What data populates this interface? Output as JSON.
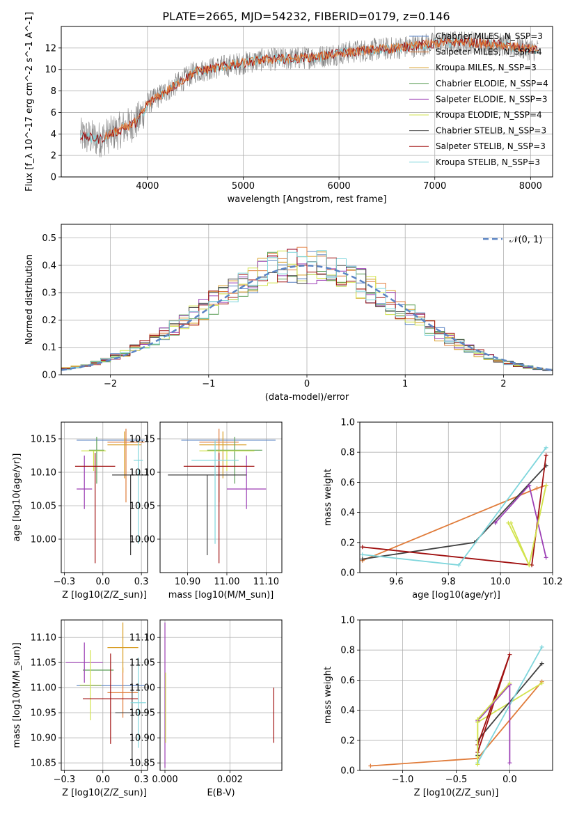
{
  "figure_title": "PLATE=2665, MJD=54232, FIBERID=0179, z=0.146",
  "series_styles": [
    {
      "name": "Chabrier MILES, N_SSP=3",
      "color": "#5b84c4"
    },
    {
      "name": "Salpeter MILES, N_SSP=4",
      "color": "#e07b39"
    },
    {
      "name": "Kroupa MILES, N_SSP=3",
      "color": "#d89c22"
    },
    {
      "name": "Chabrier ELODIE, N_SSP=4",
      "color": "#5a9e56"
    },
    {
      "name": "Salpeter ELODIE, N_SSP=3",
      "color": "#9c3fb5"
    },
    {
      "name": "Kroupa ELODIE, N_SSP=4",
      "color": "#d2e34e"
    },
    {
      "name": "Chabrier STELIB, N_SSP=3",
      "color": "#404040"
    },
    {
      "name": "Salpeter STELIB, N_SSP=3",
      "color": "#a01010"
    },
    {
      "name": "Kroupa STELIB, N_SSP=3",
      "color": "#7fd6dc"
    }
  ],
  "chart_data": [
    {
      "type": "line",
      "id": "spectrum",
      "xlabel": "wavelength [Angstrom, rest frame]",
      "ylabel": "Flux [f_λ 10^-17 erg cm^-2 s^-1 A^-1]",
      "xlim": [
        3100,
        8230
      ],
      "ylim": [
        0,
        14
      ],
      "xticks": [
        4000,
        5000,
        6000,
        7000,
        8000
      ],
      "yticks": [
        0,
        2,
        4,
        6,
        8,
        10,
        12
      ],
      "legend": {
        "position": "top-right",
        "entries": [
          "Chabrier MILES, N_SSP=3",
          "Salpeter MILES, N_SSP=4",
          "Kroupa MILES, N_SSP=3",
          "Chabrier ELODIE, N_SSP=4",
          "Salpeter ELODIE, N_SSP=3",
          "Kroupa ELODIE, N_SSP=4",
          "Chabrier STELIB, N_SSP=3",
          "Salpeter STELIB, N_SSP=3",
          "Kroupa STELIB, N_SSP=3"
        ]
      },
      "data_color": "#808080",
      "continuum_x": [
        3300,
        3500,
        3700,
        3900,
        4000,
        4300,
        4500,
        4800,
        5000,
        5200,
        5500,
        5800,
        6000,
        6300,
        6600,
        7000,
        7300,
        7500,
        7700,
        7900,
        8080
      ],
      "continuum_y": [
        3.8,
        3.5,
        4.3,
        5.2,
        6.8,
        8.6,
        9.8,
        10.3,
        10.6,
        10.9,
        11.0,
        11.2,
        11.5,
        11.8,
        12.0,
        12.4,
        12.6,
        12.4,
        12.3,
        12.0,
        11.8
      ],
      "model_colors": [
        "#7fd6dc",
        "#a01010",
        "#e07b39"
      ],
      "model_start": [
        3300,
        3300,
        3550
      ]
    },
    {
      "type": "histogram",
      "id": "residuals",
      "xlabel": "(data-model)/error",
      "ylabel": "Normed distribution",
      "xlim": [
        -2.5,
        2.5
      ],
      "ylim": [
        0,
        0.55
      ],
      "xticks": [
        -2,
        -1,
        0,
        1,
        2
      ],
      "yticks": [
        0.0,
        0.1,
        0.2,
        0.3,
        0.4,
        0.5
      ],
      "bin_width": 0.1,
      "legend": {
        "position": "top-right",
        "entries": [
          "N(0,1)"
        ]
      },
      "reference_curve": {
        "name": "N(0,1)",
        "color": "#5b84c4",
        "style": "dashed"
      }
    },
    {
      "type": "scatter",
      "id": "age_vs_Z",
      "xlabel": "Z [log10(Z/Z_sun)]",
      "ylabel": "age [log10(age/yr)]",
      "xlim": [
        -0.27,
        0.29
      ],
      "ylim": [
        9.95,
        10.175
      ],
      "xticks": [
        -0.25,
        0.0,
        0.25
      ],
      "yticks": [
        10.0,
        10.05,
        10.1,
        10.15
      ],
      "points": [
        {
          "x": 0.05,
          "y": 10.148,
          "xerr": 0.22,
          "yerr_lo": 0.0,
          "yerr_hi": 0.0
        },
        {
          "x": 0.15,
          "y": 10.145,
          "xerr": 0.12,
          "yerr_lo": 0.09,
          "yerr_hi": 0.02
        },
        {
          "x": 0.14,
          "y": 10.141,
          "xerr": 0.11,
          "yerr_lo": 0.05,
          "yerr_hi": 0.02
        },
        {
          "x": -0.04,
          "y": 10.133,
          "xerr": 0.05,
          "yerr_lo": 0.05,
          "yerr_hi": 0.02
        },
        {
          "x": -0.12,
          "y": 10.075,
          "xerr": 0.05,
          "yerr_lo": 0.03,
          "yerr_hi": 0.05
        },
        {
          "x": -0.06,
          "y": 10.132,
          "xerr": 0.08,
          "yerr_lo": 0.03,
          "yerr_hi": 0.0
        },
        {
          "x": 0.18,
          "y": 10.096,
          "xerr": 0.12,
          "yerr_lo": 0.12,
          "yerr_hi": 0.0
        },
        {
          "x": -0.05,
          "y": 10.109,
          "xerr": 0.13,
          "yerr_lo": 0.145,
          "yerr_hi": 0.02
        },
        {
          "x": 0.23,
          "y": 10.118,
          "xerr": 0.03,
          "yerr_lo": 0.125,
          "yerr_hi": 0.03
        }
      ]
    },
    {
      "type": "scatter",
      "id": "age_vs_mass",
      "xlabel": "mass [log10(M/M_sun)]",
      "ylabel": "",
      "xlim": [
        10.83,
        11.14
      ],
      "ylim": [
        9.95,
        10.175
      ],
      "xticks": [
        10.9,
        11.0,
        11.1
      ],
      "yticks": [
        10.0,
        10.05,
        10.1,
        10.15
      ],
      "points": [
        {
          "x": 11.004,
          "y": 10.148,
          "xerr": 0.12,
          "yerr_lo": 0.0,
          "yerr_hi": 0.0
        },
        {
          "x": 10.98,
          "y": 10.145,
          "xerr": 0.05,
          "yerr_lo": 0.09,
          "yerr_hi": 0.02
        },
        {
          "x": 10.99,
          "y": 10.141,
          "xerr": 0.06,
          "yerr_lo": 0.05,
          "yerr_hi": 0.02
        },
        {
          "x": 11.02,
          "y": 10.133,
          "xerr": 0.07,
          "yerr_lo": 0.05,
          "yerr_hi": 0.02
        },
        {
          "x": 11.05,
          "y": 10.075,
          "xerr": 0.05,
          "yerr_lo": 0.03,
          "yerr_hi": 0.05
        },
        {
          "x": 11.0,
          "y": 10.132,
          "xerr": 0.07,
          "yerr_lo": 0.03,
          "yerr_hi": 0.0
        },
        {
          "x": 10.95,
          "y": 10.096,
          "xerr": 0.1,
          "yerr_lo": 0.12,
          "yerr_hi": 0.0
        },
        {
          "x": 10.98,
          "y": 10.109,
          "xerr": 0.09,
          "yerr_lo": 0.145,
          "yerr_hi": 0.02
        },
        {
          "x": 10.97,
          "y": 10.118,
          "xerr": 0.06,
          "yerr_lo": 0.125,
          "yerr_hi": 0.03
        }
      ]
    },
    {
      "type": "line",
      "id": "weight_vs_age",
      "xlabel": "age [log10(age/yr)]",
      "ylabel": "mass weight",
      "xlim": [
        9.46,
        10.2
      ],
      "ylim": [
        0,
        1
      ],
      "xticks": [
        9.6,
        9.8,
        10.0,
        10.2
      ],
      "yticks": [
        0.0,
        0.2,
        0.4,
        0.6,
        0.8,
        1.0
      ],
      "series": [
        {
          "x": [
            9.47,
            10.14,
            10.175
          ],
          "y": [
            0.08,
            0.56,
            0.58
          ]
        },
        {
          "x": [
            10.03,
            10.11,
            10.175
          ],
          "y": [
            0.33,
            0.05,
            0.58
          ]
        },
        {
          "x": [
            9.47,
            9.9,
            10.175
          ],
          "y": [
            0.09,
            0.2,
            0.71
          ]
        },
        {
          "x": [
            9.47,
            10.12,
            10.175
          ],
          "y": [
            0.17,
            0.05,
            0.78
          ]
        },
        {
          "x": [
            9.47,
            9.84,
            10.175
          ],
          "y": [
            0.12,
            0.05,
            0.83
          ]
        },
        {
          "x": [
            9.98,
            10.11,
            10.175
          ],
          "y": [
            0.33,
            0.58,
            0.1
          ]
        },
        {
          "x": [
            10.04,
            10.11,
            10.175
          ],
          "y": [
            0.33,
            0.05,
            0.58
          ]
        }
      ]
    },
    {
      "type": "scatter",
      "id": "mass_vs_Z",
      "xlabel": "Z [log10(Z/Z_sun)]",
      "ylabel": "mass [log10(M/M_sun)]",
      "xlim": [
        -0.27,
        0.29
      ],
      "ylim": [
        10.835,
        11.135
      ],
      "xticks": [
        -0.25,
        0.0,
        0.25
      ],
      "yticks": [
        10.85,
        10.9,
        10.95,
        11.0,
        11.05,
        11.1
      ],
      "points": [
        {
          "x": 0.05,
          "y": 11.004,
          "xerr": 0.22,
          "yerr": 0.0
        },
        {
          "x": 0.13,
          "y": 10.99,
          "xerr": 0.1,
          "yerr": 0.05
        },
        {
          "x": 0.13,
          "y": 11.08,
          "xerr": 0.1,
          "yerr": 0.05
        },
        {
          "x": -0.03,
          "y": 11.035,
          "xerr": 0.1,
          "yerr": 0.0
        },
        {
          "x": -0.12,
          "y": 11.05,
          "xerr": 0.12,
          "yerr": 0.04
        },
        {
          "x": -0.08,
          "y": 11.005,
          "xerr": 0.07,
          "yerr": 0.07
        },
        {
          "x": 0.19,
          "y": 10.95,
          "xerr": 0.11,
          "yerr": 0.1
        },
        {
          "x": 0.05,
          "y": 10.978,
          "xerr": 0.18,
          "yerr": 0.09
        },
        {
          "x": 0.23,
          "y": 10.97,
          "xerr": 0.05,
          "yerr": 0.09
        }
      ]
    },
    {
      "type": "scatter",
      "id": "mass_vs_EBV",
      "xlabel": "E(B-V)",
      "ylabel": "",
      "xlim": [
        -0.00015,
        0.0036
      ],
      "ylim": [
        10.835,
        11.135
      ],
      "xticks": [
        0.0,
        0.002
      ],
      "yticks": [
        10.85,
        10.9,
        10.95,
        11.0,
        11.05,
        11.1
      ],
      "vlines": [
        {
          "x": 0.0,
          "ylo": 10.84,
          "yhi": 11.13
        },
        {
          "x": 2e-05,
          "ylo": 10.89,
          "yhi": 11.03
        },
        {
          "x": 0.00335,
          "ylo": 10.89,
          "yhi": 11.0
        }
      ]
    },
    {
      "type": "line",
      "id": "weight_vs_Z",
      "xlabel": "Z [log10(Z/Z_sun)]",
      "ylabel": "mass weight",
      "xlim": [
        -1.4,
        0.4
      ],
      "ylim": [
        0,
        1
      ],
      "xticks": [
        -1.0,
        -0.5,
        0.0
      ],
      "yticks": [
        0.0,
        0.2,
        0.4,
        0.6,
        0.8,
        1.0
      ],
      "series": [
        {
          "x": [
            -1.3,
            -0.3,
            0.3
          ],
          "y": [
            0.03,
            0.08,
            0.59
          ]
        },
        {
          "x": [
            -0.3,
            -0.3,
            0.3
          ],
          "y": [
            0.09,
            0.32,
            0.58
          ]
        },
        {
          "x": [
            -0.3,
            -0.3,
            0.3
          ],
          "y": [
            0.1,
            0.2,
            0.71
          ]
        },
        {
          "x": [
            -0.3,
            0.0,
            -0.3
          ],
          "y": [
            0.17,
            0.77,
            0.12
          ]
        },
        {
          "x": [
            -0.3,
            0.3
          ],
          "y": [
            0.05,
            0.82
          ]
        },
        {
          "x": [
            -0.3,
            0.0,
            0.0
          ],
          "y": [
            0.33,
            0.57,
            0.05
          ]
        },
        {
          "x": [
            -0.3,
            -0.3,
            0.0
          ],
          "y": [
            0.04,
            0.34,
            0.58
          ]
        }
      ]
    }
  ]
}
